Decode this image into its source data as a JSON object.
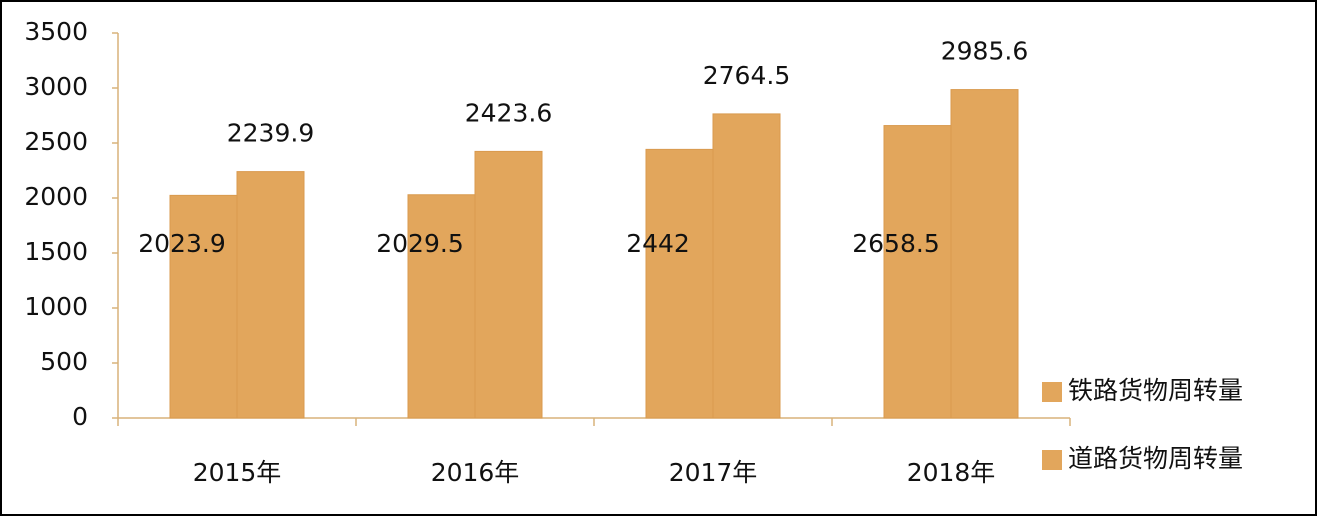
{
  "chart_data": {
    "type": "bar",
    "categories": [
      "2015年",
      "2016年",
      "2017年",
      "2018年"
    ],
    "series": [
      {
        "name": "铁路货物周转量",
        "color": "#e2a65c",
        "values": [
          2023.9,
          2029.5,
          2442,
          2658.5
        ]
      },
      {
        "name": "道路货物周转量",
        "color": "#e2a65c",
        "values": [
          2239.9,
          2423.6,
          2764.5,
          2985.6
        ]
      }
    ],
    "ylim": [
      0,
      3500
    ],
    "yticks": [
      0,
      500,
      1000,
      1500,
      2000,
      2500,
      3000,
      3500
    ],
    "grid": false,
    "legend": "right"
  }
}
